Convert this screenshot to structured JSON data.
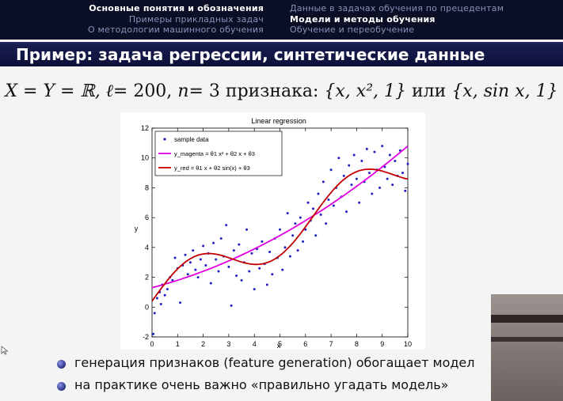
{
  "nav": {
    "left": [
      "Основные понятия и обозначения",
      "Примеры прикладных задач",
      "О методологии машинного обучения"
    ],
    "left_active": 0,
    "right": [
      "Данные в задачах обучения по прецедентам",
      "Модели и методы обучения",
      "Обучение и переобучение"
    ],
    "right_active": 1
  },
  "title": "Пример: задача регрессии, синтетические данные",
  "formula": {
    "xy": "X = Y = ℝ,",
    "l_var": "ℓ",
    "l_val": "= 200,",
    "n_var": "n",
    "n_val": "= 3",
    "word_features": "признака:",
    "set1": "{x, x², 1}",
    "word_or": "или",
    "set2": "{x, sin x, 1}"
  },
  "chart_data": {
    "type": "scatter",
    "title": "Linear regression",
    "xlabel": "x",
    "ylabel": "y",
    "xlim": [
      0,
      10
    ],
    "ylim": [
      -2,
      12
    ],
    "xticks": [
      0,
      1,
      2,
      3,
      4,
      5,
      6,
      7,
      8,
      9,
      10
    ],
    "yticks": [
      -2,
      0,
      2,
      4,
      6,
      8,
      10,
      12
    ],
    "legend_position": "top-left",
    "legend": [
      "sample data",
      "y_magenta = θ1 x² + θ2 x + θ3",
      "y_red = θ1 x + θ2 sin(x) + θ3"
    ],
    "series": [
      {
        "name": "sample data",
        "kind": "points",
        "color": "#2020c0",
        "points": [
          [
            0.05,
            -1.8
          ],
          [
            0.1,
            -0.4
          ],
          [
            0.2,
            0.6
          ],
          [
            0.3,
            1.0
          ],
          [
            0.35,
            0.2
          ],
          [
            0.4,
            1.5
          ],
          [
            0.5,
            0.8
          ],
          [
            0.6,
            1.2
          ],
          [
            0.7,
            2.0
          ],
          [
            0.8,
            1.8
          ],
          [
            0.9,
            3.3
          ],
          [
            1.0,
            2.6
          ],
          [
            1.1,
            0.3
          ],
          [
            1.2,
            2.8
          ],
          [
            1.3,
            3.5
          ],
          [
            1.4,
            2.2
          ],
          [
            1.5,
            3.0
          ],
          [
            1.6,
            3.8
          ],
          [
            1.7,
            2.5
          ],
          [
            1.8,
            2.0
          ],
          [
            1.9,
            3.2
          ],
          [
            2.0,
            4.1
          ],
          [
            2.1,
            2.8
          ],
          [
            2.2,
            3.6
          ],
          [
            2.3,
            1.6
          ],
          [
            2.4,
            4.3
          ],
          [
            2.5,
            3.2
          ],
          [
            2.6,
            2.4
          ],
          [
            2.7,
            4.6
          ],
          [
            2.8,
            3.4
          ],
          [
            2.9,
            5.5
          ],
          [
            3.0,
            2.7
          ],
          [
            3.1,
            0.1
          ],
          [
            3.2,
            3.8
          ],
          [
            3.3,
            2.1
          ],
          [
            3.4,
            4.2
          ],
          [
            3.5,
            1.8
          ],
          [
            3.6,
            3.0
          ],
          [
            3.7,
            5.2
          ],
          [
            3.8,
            2.4
          ],
          [
            3.9,
            3.6
          ],
          [
            4.0,
            1.2
          ],
          [
            4.1,
            3.9
          ],
          [
            4.2,
            2.6
          ],
          [
            4.3,
            4.4
          ],
          [
            4.4,
            2.9
          ],
          [
            4.5,
            1.5
          ],
          [
            4.6,
            3.7
          ],
          [
            4.7,
            2.2
          ],
          [
            4.8,
            4.6
          ],
          [
            4.9,
            3.3
          ],
          [
            5.0,
            5.2
          ],
          [
            5.1,
            2.5
          ],
          [
            5.2,
            4.0
          ],
          [
            5.3,
            6.3
          ],
          [
            5.4,
            3.4
          ],
          [
            5.5,
            4.8
          ],
          [
            5.6,
            5.6
          ],
          [
            5.7,
            3.8
          ],
          [
            5.8,
            6.0
          ],
          [
            5.9,
            4.4
          ],
          [
            6.0,
            5.2
          ],
          [
            6.1,
            7.0
          ],
          [
            6.2,
            5.8
          ],
          [
            6.3,
            6.6
          ],
          [
            6.4,
            4.8
          ],
          [
            6.5,
            7.6
          ],
          [
            6.6,
            6.2
          ],
          [
            6.7,
            8.4
          ],
          [
            6.8,
            5.6
          ],
          [
            6.9,
            7.2
          ],
          [
            7.0,
            9.2
          ],
          [
            7.1,
            6.8
          ],
          [
            7.2,
            8.0
          ],
          [
            7.3,
            10.0
          ],
          [
            7.4,
            7.4
          ],
          [
            7.5,
            8.8
          ],
          [
            7.6,
            6.4
          ],
          [
            7.7,
            9.5
          ],
          [
            7.8,
            8.2
          ],
          [
            7.9,
            10.2
          ],
          [
            8.0,
            8.6
          ],
          [
            8.1,
            7.0
          ],
          [
            8.2,
            9.8
          ],
          [
            8.3,
            8.4
          ],
          [
            8.4,
            10.6
          ],
          [
            8.5,
            9.0
          ],
          [
            8.6,
            7.6
          ],
          [
            8.7,
            10.4
          ],
          [
            8.8,
            9.2
          ],
          [
            8.9,
            8.0
          ],
          [
            9.0,
            10.8
          ],
          [
            9.1,
            9.4
          ],
          [
            9.2,
            8.6
          ],
          [
            9.3,
            10.2
          ],
          [
            9.4,
            8.2
          ],
          [
            9.5,
            9.8
          ],
          [
            9.6,
            8.8
          ],
          [
            9.7,
            10.5
          ],
          [
            9.8,
            9.0
          ],
          [
            9.9,
            7.8
          ],
          [
            10.0,
            9.6
          ]
        ]
      },
      {
        "name": "y_magenta",
        "kind": "curve",
        "color": "#e000e0",
        "model": "quadratic",
        "coef": [
          0.05,
          0.45,
          1.3
        ]
      },
      {
        "name": "y_red",
        "kind": "curve",
        "color": "#c00000",
        "model": "linear_sin",
        "coef": [
          0.9,
          1.5,
          0.4
        ]
      }
    ]
  },
  "bullets": [
    "генерация признаков (feature generation) обогащает модел",
    "на практике очень важно «правильно угадать модель»"
  ]
}
